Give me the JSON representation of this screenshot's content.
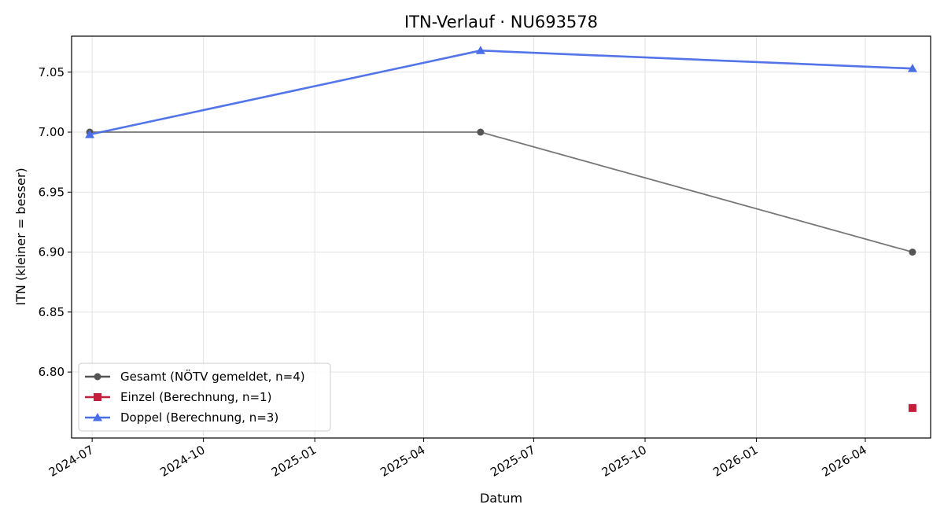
{
  "chart_data": {
    "type": "line",
    "title": "ITN-Verlauf · NU693578",
    "xlabel": "Datum",
    "ylabel": "ITN  (kleiner = besser)",
    "x_type": "date",
    "xlim": [
      "2024-06-14",
      "2026-05-25"
    ],
    "ylim": [
      6.745,
      7.08
    ],
    "x_ticks": [
      "2024-07-01",
      "2024-10-01",
      "2025-01-01",
      "2025-04-01",
      "2025-07-01",
      "2025-10-01",
      "2026-01-01",
      "2026-04-01"
    ],
    "x_tick_labels": [
      "2024-07",
      "2024-10",
      "2025-01",
      "2025-04",
      "2025-07",
      "2025-10",
      "2026-01",
      "2026-04"
    ],
    "y_ticks": [
      6.8,
      6.85,
      6.9,
      6.95,
      7.0,
      7.05
    ],
    "y_tick_labels": [
      "6.80",
      "6.85",
      "6.90",
      "6.95",
      "7.00",
      "7.05"
    ],
    "grid": true,
    "legend_position": "lower-left",
    "series": [
      {
        "name": "Gesamt (NÖTV gemeldet, n=4)",
        "color": "#555555",
        "marker": "circle",
        "points": [
          {
            "x": "2024-06-29",
            "y": 7.0
          },
          {
            "x": "2025-05-18",
            "y": 7.0
          },
          {
            "x": "2026-05-10",
            "y": 6.9
          }
        ]
      },
      {
        "name": "Einzel (Berechnung, n=1)",
        "color": "#c41e3a",
        "marker": "square",
        "points": [
          {
            "x": "2026-05-10",
            "y": 6.77
          }
        ]
      },
      {
        "name": "Doppel (Berechnung, n=3)",
        "color": "#4a6ee8",
        "marker": "triangle",
        "points": [
          {
            "x": "2024-06-29",
            "y": 6.998
          },
          {
            "x": "2025-05-18",
            "y": 7.068
          },
          {
            "x": "2026-05-10",
            "y": 7.053
          }
        ]
      }
    ]
  }
}
